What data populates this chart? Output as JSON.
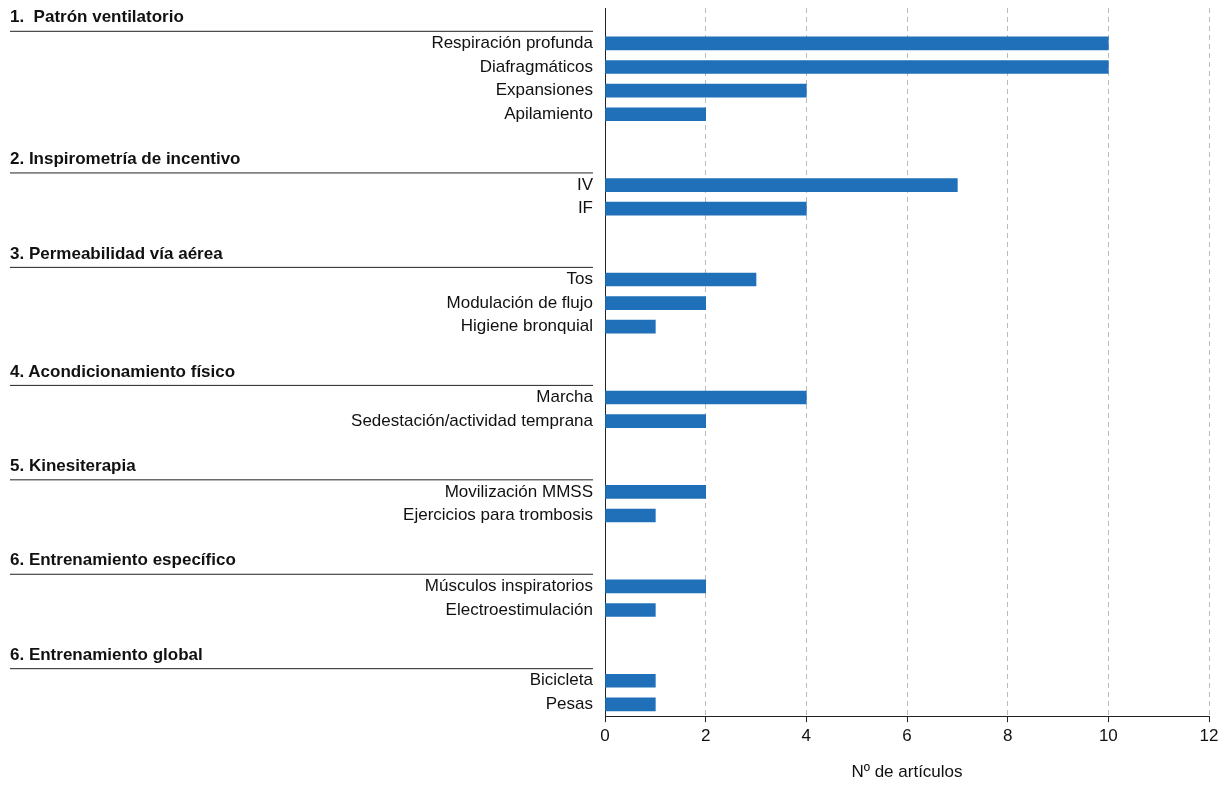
{
  "chart_data": {
    "type": "bar",
    "orientation": "horizontal",
    "xlabel": "Nº de artículos",
    "categories": [
      null,
      "Respiración profunda",
      "Diafragmáticos",
      "Expansiones",
      "Apilamiento",
      null,
      null,
      "IV",
      "IF",
      null,
      null,
      "Tos",
      "Modulación de flujo",
      "Higiene bronquial",
      null,
      null,
      "Marcha",
      "Sedestación/actividad temprana",
      null,
      null,
      "Movilización MMSS",
      "Ejercicios para trombosis",
      null,
      null,
      "Músculos inspiratorios",
      "Electroestimulación",
      null,
      null,
      "Bicicleta",
      "Pesas"
    ],
    "values": [
      null,
      10,
      10,
      4,
      2,
      null,
      null,
      7,
      4,
      null,
      null,
      3,
      2,
      1,
      null,
      null,
      4,
      2,
      null,
      null,
      2,
      1,
      null,
      null,
      2,
      1,
      null,
      null,
      1,
      1
    ],
    "annotations": [
      "1.  Patrón ventilatorio",
      "2. Inspirometría de incentivo",
      "3. Permeabilidad vía aérea",
      "4. Acondicionamiento físico",
      "5. Kinesiterapia",
      "6. Entrenamiento específico",
      "6. Entrenamiento global"
    ],
    "color": "#1f70b8",
    "xlim": [
      0,
      12
    ],
    "xticks": [
      0,
      2,
      4,
      6,
      8,
      10,
      12
    ],
    "grid": "x",
    "legend": false
  }
}
